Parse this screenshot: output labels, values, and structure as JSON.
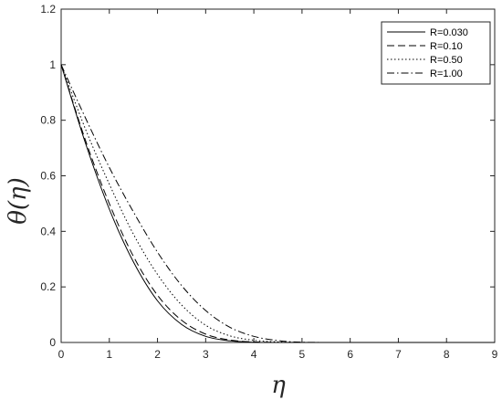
{
  "chart_data": {
    "type": "line",
    "title": "",
    "xlabel": "η",
    "ylabel": "θ(η)",
    "xlim": [
      0,
      9
    ],
    "ylim": [
      0,
      1.2
    ],
    "x_ticks": [
      "0",
      "1",
      "2",
      "3",
      "4",
      "5",
      "6",
      "7",
      "8",
      "9"
    ],
    "y_ticks": [
      "0",
      "0.2",
      "0.4",
      "0.6",
      "0.8",
      "1",
      "1.2"
    ],
    "grid": false,
    "legend_position": "top-right",
    "x": [
      0,
      0.5,
      1,
      1.5,
      2,
      2.5,
      3,
      3.5,
      4,
      4.5,
      5,
      6,
      7,
      8,
      9
    ],
    "series": [
      {
        "name": "R=0.030",
        "dash": "solid",
        "values": [
          1.0,
          0.72,
          0.48,
          0.29,
          0.15,
          0.065,
          0.022,
          0.006,
          0.001,
          0,
          0,
          0,
          0,
          0,
          0
        ]
      },
      {
        "name": "R=0.10",
        "dash": "dashed",
        "values": [
          1.0,
          0.73,
          0.5,
          0.31,
          0.17,
          0.08,
          0.03,
          0.009,
          0.002,
          0,
          0,
          0,
          0,
          0,
          0
        ]
      },
      {
        "name": "R=0.50",
        "dash": "dotted",
        "values": [
          1.0,
          0.77,
          0.57,
          0.39,
          0.245,
          0.135,
          0.062,
          0.024,
          0.008,
          0.002,
          0,
          0,
          0,
          0,
          0
        ]
      },
      {
        "name": "R=1.00",
        "dash": "dashdot",
        "values": [
          1.0,
          0.81,
          0.63,
          0.47,
          0.325,
          0.205,
          0.115,
          0.055,
          0.022,
          0.007,
          0.001,
          0,
          0,
          0,
          0
        ]
      }
    ]
  }
}
